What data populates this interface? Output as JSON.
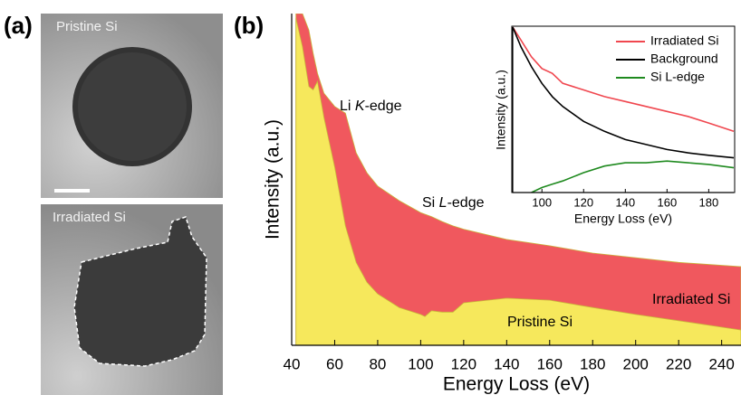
{
  "panel_a": {
    "label": "(a)",
    "images": [
      "Pristine Si",
      "Irradiated Si"
    ]
  },
  "chart_data": [
    {
      "type": "area",
      "panel_label": "(b)",
      "xlabel": "Energy Loss (eV)",
      "ylabel": "Intensity (a.u.)",
      "x": [
        42,
        45,
        48,
        50,
        52,
        55,
        60,
        65,
        70,
        75,
        80,
        90,
        100,
        102,
        105,
        110,
        115,
        120,
        140,
        160,
        180,
        200,
        220,
        249
      ],
      "series": [
        {
          "name": "Irradiated Si",
          "color": "#f0585e",
          "values": [
            100,
            100,
            95,
            88,
            82,
            76,
            72,
            70,
            58,
            52,
            48,
            43.6,
            40,
            39.5,
            38.8,
            37.3,
            36,
            35,
            31.9,
            30,
            27.8,
            26.4,
            25,
            23.7
          ]
        },
        {
          "name": "Pristine Si",
          "color": "#f6e85c",
          "values": [
            98.6,
            90,
            78,
            77,
            79.6,
            68.7,
            53.7,
            36,
            25,
            19,
            15.5,
            11.4,
            9.3,
            8.7,
            10.4,
            10,
            10,
            12.8,
            14.2,
            13.6,
            11.4,
            9.3,
            7.4,
            4.6
          ]
        }
      ],
      "annotations": [
        {
          "prefix": "Li ",
          "italic": "K",
          "suffix": "-edge"
        },
        {
          "prefix": "Si ",
          "italic": "L",
          "suffix": "-edge"
        }
      ],
      "xlim": [
        40,
        249
      ],
      "ylim": [
        0,
        100
      ],
      "xticks": [
        40,
        60,
        80,
        100,
        120,
        140,
        160,
        180,
        200,
        220,
        240
      ]
    },
    {
      "type": "line",
      "xlabel": "Energy Loss (eV)",
      "ylabel": "Intensity (a.u.)",
      "x": [
        86,
        90,
        95,
        100,
        105,
        110,
        120,
        130,
        140,
        150,
        160,
        170,
        180,
        192
      ],
      "series": [
        {
          "name": "Irradiated Si",
          "color": "#f0474f",
          "values": [
            100,
            92,
            82,
            75,
            72,
            66,
            62,
            58,
            55,
            52,
            49,
            46,
            42,
            37
          ]
        },
        {
          "name": "Background",
          "color": "#000000",
          "values": [
            100,
            88,
            76,
            66,
            58,
            52,
            43,
            37,
            32,
            29,
            26,
            24,
            22.5,
            21
          ]
        },
        {
          "name": "Si L-edge",
          "color": "#1f8a1f",
          "values": [
            null,
            null,
            0,
            3,
            5,
            7,
            12,
            16,
            18,
            18,
            19,
            18,
            17,
            15
          ]
        }
      ],
      "legend": "upper right",
      "xlim": [
        86,
        192
      ],
      "ylim": [
        0,
        100
      ],
      "xticks": [
        100,
        120,
        140,
        160,
        180
      ]
    }
  ]
}
